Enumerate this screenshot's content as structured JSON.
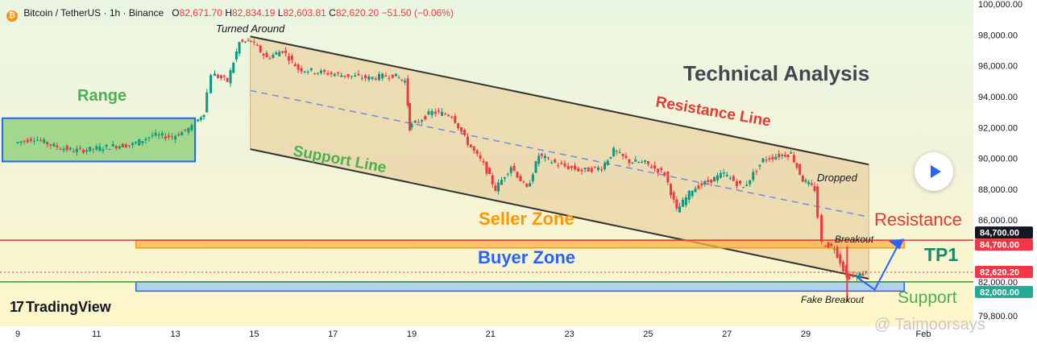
{
  "header": {
    "symbol": "Bitcoin / TetherUS · 1h · Binance",
    "o_label": "O",
    "o": "82,671.70",
    "h_label": "H",
    "h": "82,834.19",
    "l_label": "L",
    "l": "82,603.81",
    "c_label": "C",
    "c": "82,620.20",
    "change": "−51.50 (−0.06%)"
  },
  "branding": {
    "logo_text": "TradingView",
    "watermark": "@ Taimoorsays"
  },
  "colors": {
    "bull": "#089981",
    "bear": "#f23645",
    "channel_fill": "#e9d3a4",
    "seller_zone": "#ffb347",
    "buyer_zone": "#9cc4f5",
    "range_fill": "#93d27d",
    "blue": "#2962ff",
    "resistance": "#f23645",
    "support": "#4caf50"
  },
  "chart_data": {
    "type": "candlestick",
    "title": "Technical Analysis",
    "y_axis": {
      "min": 79800,
      "max": 100000,
      "ticks": [
        79800,
        82000,
        84000,
        86000,
        88000,
        90000,
        92000,
        94000,
        96000,
        98000,
        100000
      ],
      "tick_labels": [
        "79,800.00",
        "82,000.00",
        "",
        "86,000.00",
        "88,000.00",
        "90,000.00",
        "92,000.00",
        "94,000.00",
        "96,000.00",
        "98,000.00",
        "100,000.00"
      ]
    },
    "x_axis": {
      "labels": [
        "9",
        "11",
        "13",
        "15",
        "17",
        "19",
        "21",
        "23",
        "25",
        "27",
        "29",
        "Feb"
      ]
    },
    "price_labels": [
      {
        "text": "84,700.00",
        "value": 84700,
        "style": "dark"
      },
      {
        "text": "84,700.00",
        "value": 84700,
        "style": "red"
      },
      {
        "text": "82,620.20",
        "value": 82620.2,
        "style": "red"
      },
      {
        "text": "82,000.00",
        "value": 82000,
        "style": "green"
      }
    ],
    "series": [
      {
        "x": 9,
        "y": 91000
      },
      {
        "x": 9.5,
        "y": 91300
      },
      {
        "x": 10,
        "y": 90800
      },
      {
        "x": 10.5,
        "y": 90500
      },
      {
        "x": 11,
        "y": 90600
      },
      {
        "x": 11.5,
        "y": 90800
      },
      {
        "x": 12,
        "y": 90900
      },
      {
        "x": 12.5,
        "y": 91500
      },
      {
        "x": 13,
        "y": 91400
      },
      {
        "x": 13.5,
        "y": 92000
      },
      {
        "x": 13.8,
        "y": 93000
      },
      {
        "x": 14,
        "y": 95500
      },
      {
        "x": 14.4,
        "y": 95000
      },
      {
        "x": 14.7,
        "y": 97500
      },
      {
        "x": 15,
        "y": 97600
      },
      {
        "x": 15.4,
        "y": 96500
      },
      {
        "x": 15.8,
        "y": 97000
      },
      {
        "x": 16.2,
        "y": 95800
      },
      {
        "x": 16.7,
        "y": 95600
      },
      {
        "x": 17.3,
        "y": 95400
      },
      {
        "x": 18,
        "y": 95200
      },
      {
        "x": 18.6,
        "y": 95400
      },
      {
        "x": 18.9,
        "y": 95000
      },
      {
        "x": 19,
        "y": 92000
      },
      {
        "x": 19.6,
        "y": 93000
      },
      {
        "x": 20.1,
        "y": 92800
      },
      {
        "x": 20.5,
        "y": 91000
      },
      {
        "x": 20.9,
        "y": 89600
      },
      {
        "x": 21.2,
        "y": 88000
      },
      {
        "x": 21.6,
        "y": 89500
      },
      {
        "x": 22,
        "y": 88000
      },
      {
        "x": 22.3,
        "y": 90200
      },
      {
        "x": 22.8,
        "y": 89600
      },
      {
        "x": 23.4,
        "y": 89200
      },
      {
        "x": 23.9,
        "y": 89400
      },
      {
        "x": 24.2,
        "y": 90500
      },
      {
        "x": 24.6,
        "y": 89800
      },
      {
        "x": 25,
        "y": 89700
      },
      {
        "x": 25.5,
        "y": 89000
      },
      {
        "x": 25.8,
        "y": 86600
      },
      {
        "x": 26.2,
        "y": 88000
      },
      {
        "x": 26.6,
        "y": 88500
      },
      {
        "x": 27,
        "y": 89000
      },
      {
        "x": 27.5,
        "y": 88100
      },
      {
        "x": 28,
        "y": 89900
      },
      {
        "x": 28.4,
        "y": 90200
      },
      {
        "x": 28.7,
        "y": 90300
      },
      {
        "x": 29,
        "y": 88600
      },
      {
        "x": 29.3,
        "y": 88000
      },
      {
        "x": 29.5,
        "y": 84500
      },
      {
        "x": 29.8,
        "y": 84200
      },
      {
        "x": 30.1,
        "y": 82400
      },
      {
        "x": 30.3,
        "y": 82300
      },
      {
        "x": 30.6,
        "y": 82600
      }
    ],
    "annotations": [
      {
        "text": "Range",
        "color": "#4caf50"
      },
      {
        "text": "Turned Around",
        "color": "#131722"
      },
      {
        "text": "Technical Analysis",
        "color": "#434651"
      },
      {
        "text": "Resistance Line",
        "color": "#e53935"
      },
      {
        "text": "Support Line",
        "color": "#4caf50"
      },
      {
        "text": "Dropped",
        "color": "#131722"
      },
      {
        "text": "Seller Zone",
        "color": "#ff9800"
      },
      {
        "text": "Buyer Zone",
        "color": "#2962ff"
      },
      {
        "text": "Breakout",
        "color": "#131722"
      },
      {
        "text": "Fake Breakout",
        "color": "#131722"
      },
      {
        "text": "Resistance",
        "color": "#e53935"
      },
      {
        "text": "TP1",
        "color": "#1b8a6b"
      },
      {
        "text": "Support",
        "color": "#4caf50"
      }
    ],
    "zones": {
      "range": {
        "x_from": 9,
        "x_to": 13.5,
        "y_from": 89800,
        "y_to": 92600
      },
      "seller": {
        "x_from": 12,
        "x_to": 31.5,
        "y_from": 84200,
        "y_to": 84700
      },
      "buyer": {
        "x_from": 12,
        "x_to": 31.5,
        "y_from": 81400,
        "y_to": 82000
      },
      "channel_upper": {
        "x_from": 14.9,
        "x_to": 30.6,
        "y_from": 97900,
        "y_to": 89600
      },
      "channel_lower": {
        "x_from": 14.9,
        "x_to": 30.6,
        "y_from": 90600,
        "y_to": 82200
      },
      "channel_mid": {
        "x_from": 14.9,
        "x_to": 30.6,
        "y_from": 94400,
        "y_to": 86200
      },
      "resistance_level": 84700,
      "support_level": 82000,
      "last_price": 82620.2
    },
    "legend_position": "none",
    "grid": false
  }
}
